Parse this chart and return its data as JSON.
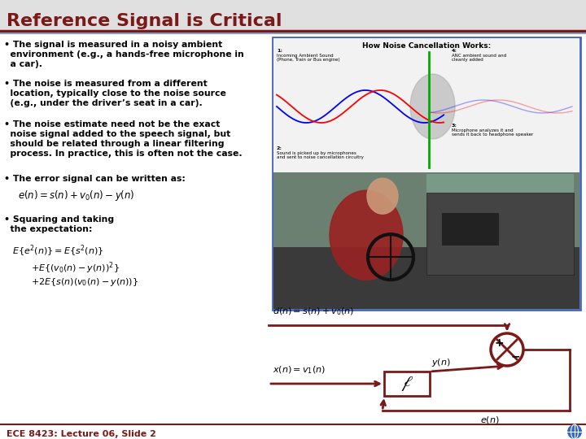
{
  "title": "Reference Signal is Critical",
  "title_color": "#7B1818",
  "slide_bg": "#FFFFFF",
  "dark_red": "#7B1818",
  "bullet1_line1": "• The signal is measured in a noisy ambient",
  "bullet1_line2": "  environment (e.g., a hands-free microphone in",
  "bullet1_line3": "  a car).",
  "bullet2_line1": "• The noise is measured from a different",
  "bullet2_line2": "  location, typically close to the noise source",
  "bullet2_line3": "  (e.g., under the driver’s seat in a car).",
  "bullet3_line1": "• The noise estimate need not be the exact",
  "bullet3_line2": "  noise signal added to the speech signal, but",
  "bullet3_line3": "  should be related through a linear filtering",
  "bullet3_line4": "  process. In practice, this is often not the case.",
  "bullet4": "• The error signal can be written as:",
  "bullet5_line1": "• Squaring and taking",
  "bullet5_line2": "  the expectation:",
  "footer": "ECE 8423: Lecture 06, Slide 2"
}
